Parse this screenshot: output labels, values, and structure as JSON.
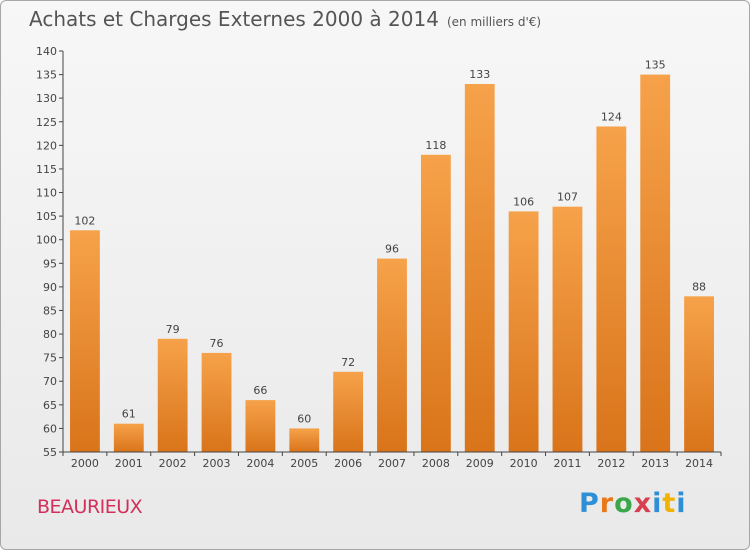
{
  "chart_data": {
    "type": "bar",
    "title": "Achats et Charges Externes 2000 à 2014",
    "subtitle": "(en milliers d'€)",
    "categories": [
      "2000",
      "2001",
      "2002",
      "2003",
      "2004",
      "2005",
      "2006",
      "2007",
      "2008",
      "2009",
      "2010",
      "2011",
      "2012",
      "2013",
      "2014"
    ],
    "values": [
      102,
      61,
      79,
      76,
      66,
      60,
      72,
      96,
      118,
      133,
      106,
      107,
      124,
      135,
      88
    ],
    "ylim": [
      55,
      140
    ],
    "yticks": [
      55,
      60,
      65,
      70,
      75,
      80,
      85,
      90,
      95,
      100,
      105,
      110,
      115,
      120,
      125,
      130,
      135,
      140
    ],
    "grid": false,
    "bar_color": "#f0922e"
  },
  "footer": {
    "place": "BEAURIEUX",
    "brand": [
      "P",
      "r",
      "o",
      "x",
      "i",
      "t",
      "i"
    ]
  }
}
